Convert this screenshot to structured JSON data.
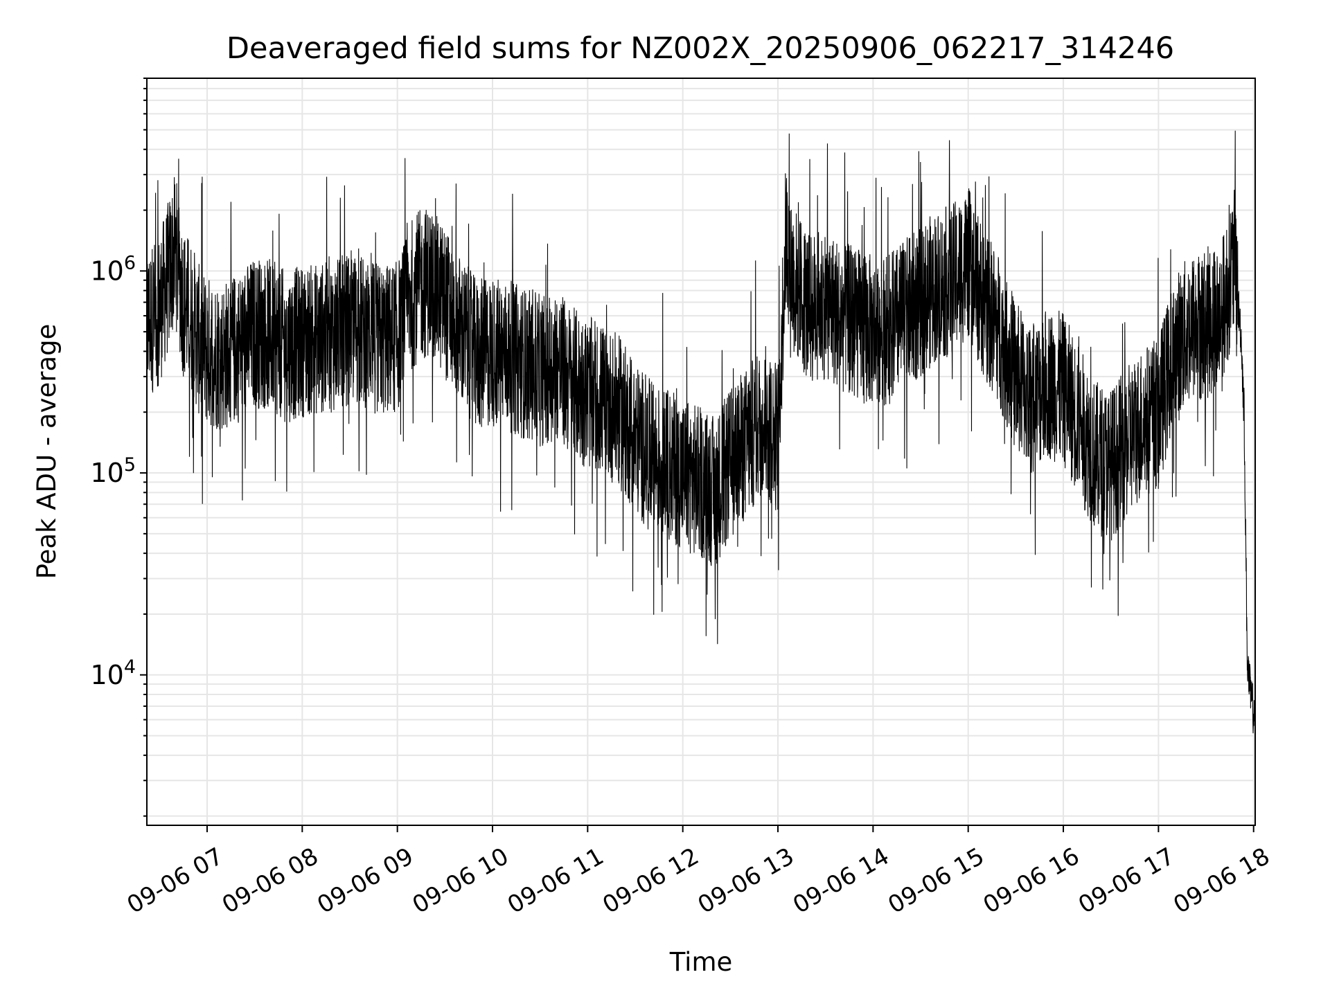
{
  "chart_data": {
    "type": "line",
    "title": "Deaveraged field sums for NZ002X_20250906_062217_314246",
    "xlabel": "Time",
    "ylabel": "Peak ADU - average",
    "yscale": "log",
    "ylim": [
      1800,
      9000000
    ],
    "xlim": [
      "2025-09-06 06:22",
      "2025-09-06 18:01"
    ],
    "x_ticks": [
      {
        "t": "2025-09-06 07:00",
        "label": "09-06 07"
      },
      {
        "t": "2025-09-06 08:00",
        "label": "09-06 08"
      },
      {
        "t": "2025-09-06 09:00",
        "label": "09-06 09"
      },
      {
        "t": "2025-09-06 10:00",
        "label": "09-06 10"
      },
      {
        "t": "2025-09-06 11:00",
        "label": "09-06 11"
      },
      {
        "t": "2025-09-06 12:00",
        "label": "09-06 12"
      },
      {
        "t": "2025-09-06 13:00",
        "label": "09-06 13"
      },
      {
        "t": "2025-09-06 14:00",
        "label": "09-06 14"
      },
      {
        "t": "2025-09-06 15:00",
        "label": "09-06 15"
      },
      {
        "t": "2025-09-06 16:00",
        "label": "09-06 16"
      },
      {
        "t": "2025-09-06 17:00",
        "label": "09-06 17"
      },
      {
        "t": "2025-09-06 18:00",
        "label": "09-06 18"
      }
    ],
    "y_ticks": [
      {
        "value": 10000,
        "base": "10",
        "exp": "4"
      },
      {
        "value": 100000,
        "base": "10",
        "exp": "5"
      },
      {
        "value": 1000000,
        "base": "10",
        "exp": "6"
      }
    ],
    "grid": true,
    "line_color": "#000000",
    "grid_color": "#e6e6e6",
    "series": [
      {
        "x": [
          "2025-09-06 06:22",
          "2025-09-06 06:30",
          "2025-09-06 06:35",
          "2025-09-06 06:40",
          "2025-09-06 06:45",
          "2025-09-06 06:50",
          "2025-09-06 06:55",
          "2025-09-06 07:00",
          "2025-09-06 07:10",
          "2025-09-06 07:20",
          "2025-09-06 07:30",
          "2025-09-06 07:40",
          "2025-09-06 07:50",
          "2025-09-06 08:00",
          "2025-09-06 08:10",
          "2025-09-06 08:20",
          "2025-09-06 08:30",
          "2025-09-06 08:40",
          "2025-09-06 08:50",
          "2025-09-06 09:00",
          "2025-09-06 09:10",
          "2025-09-06 09:20",
          "2025-09-06 09:30",
          "2025-09-06 09:40",
          "2025-09-06 09:50",
          "2025-09-06 10:00",
          "2025-09-06 10:10",
          "2025-09-06 10:20",
          "2025-09-06 10:30",
          "2025-09-06 10:40",
          "2025-09-06 10:50",
          "2025-09-06 11:00",
          "2025-09-06 11:10",
          "2025-09-06 11:20",
          "2025-09-06 11:30",
          "2025-09-06 11:40",
          "2025-09-06 11:50",
          "2025-09-06 12:00",
          "2025-09-06 12:10",
          "2025-09-06 12:20",
          "2025-09-06 12:30",
          "2025-09-06 12:40",
          "2025-09-06 12:50",
          "2025-09-06 13:00",
          "2025-09-06 13:05",
          "2025-09-06 13:10",
          "2025-09-06 13:20",
          "2025-09-06 13:30",
          "2025-09-06 13:40",
          "2025-09-06 13:50",
          "2025-09-06 14:00",
          "2025-09-06 14:10",
          "2025-09-06 14:20",
          "2025-09-06 14:30",
          "2025-09-06 14:40",
          "2025-09-06 14:50",
          "2025-09-06 15:00",
          "2025-09-06 15:10",
          "2025-09-06 15:20",
          "2025-09-06 15:30",
          "2025-09-06 15:40",
          "2025-09-06 15:50",
          "2025-09-06 16:00",
          "2025-09-06 16:10",
          "2025-09-06 16:20",
          "2025-09-06 16:30",
          "2025-09-06 16:40",
          "2025-09-06 16:50",
          "2025-09-06 17:00",
          "2025-09-06 17:10",
          "2025-09-06 17:20",
          "2025-09-06 17:30",
          "2025-09-06 17:40",
          "2025-09-06 17:45",
          "2025-09-06 17:48",
          "2025-09-06 17:50",
          "2025-09-06 17:52",
          "2025-09-06 17:54",
          "2025-09-06 17:56",
          "2025-09-06 17:58",
          "2025-09-06 18:00",
          "2025-09-06 18:01"
        ],
        "y": [
          550000,
          650000,
          900000,
          1300000,
          700000,
          600000,
          450000,
          400000,
          380000,
          420000,
          500000,
          480000,
          420000,
          450000,
          460000,
          480000,
          520000,
          500000,
          450000,
          470000,
          800000,
          900000,
          700000,
          500000,
          380000,
          400000,
          380000,
          350000,
          320000,
          350000,
          280000,
          250000,
          230000,
          200000,
          150000,
          120000,
          110000,
          100000,
          90000,
          80000,
          110000,
          140000,
          180000,
          150000,
          1500000,
          900000,
          650000,
          700000,
          600000,
          550000,
          500000,
          520000,
          600000,
          700000,
          850000,
          900000,
          1100000,
          700000,
          500000,
          300000,
          230000,
          280000,
          260000,
          180000,
          120000,
          110000,
          140000,
          180000,
          200000,
          400000,
          520000,
          550000,
          600000,
          950000,
          1100000,
          700000,
          500000,
          200000,
          12000,
          8000,
          6500,
          7500
        ]
      }
    ]
  }
}
